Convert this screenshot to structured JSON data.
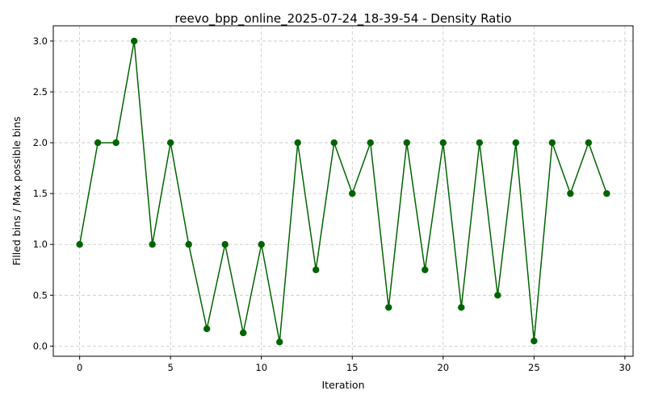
{
  "chart_data": {
    "type": "line",
    "title": "reevo_bpp_online_2025-07-24_18-39-54 - Density Ratio",
    "xlabel": "Iteration",
    "ylabel": "Filled bins / Max possible bins",
    "xlim": [
      -1.45,
      30.45
    ],
    "ylim": [
      -0.1,
      3.15
    ],
    "xticks": [
      0,
      5,
      10,
      15,
      20,
      25,
      30
    ],
    "xtick_labels": [
      "0",
      "5",
      "10",
      "15",
      "20",
      "25",
      "30"
    ],
    "yticks": [
      0.0,
      0.5,
      1.0,
      1.5,
      2.0,
      2.5,
      3.0
    ],
    "ytick_labels": [
      "0.0",
      "0.5",
      "1.0",
      "1.5",
      "2.0",
      "2.5",
      "3.0"
    ],
    "grid": true,
    "legend": "none",
    "color": "#006400",
    "series": [
      {
        "x": [
          0,
          1,
          2,
          3,
          4,
          5,
          6,
          7,
          8,
          9,
          10,
          11,
          12,
          13,
          14,
          15,
          16,
          17,
          18,
          19,
          20,
          21,
          22,
          23,
          24,
          25,
          26,
          27,
          28,
          29
        ],
        "values": [
          1.0,
          2.0,
          2.0,
          3.0,
          1.0,
          2.0,
          1.0,
          0.17,
          1.0,
          0.13,
          1.0,
          0.04,
          2.0,
          0.75,
          2.0,
          1.5,
          2.0,
          0.38,
          2.0,
          0.75,
          2.0,
          0.38,
          2.0,
          0.5,
          2.0,
          0.05,
          2.0,
          1.5,
          2.0,
          1.5
        ]
      }
    ]
  }
}
